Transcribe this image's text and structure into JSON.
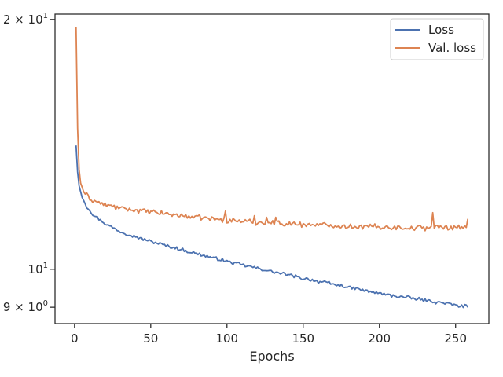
{
  "chart_data": {
    "type": "line",
    "title": "",
    "xlabel": "Epochs",
    "ylabel": "",
    "yscale": "log",
    "xlim": [
      -12.8,
      271.8
    ],
    "ylim": [
      8.6,
      20.3
    ],
    "grid": false,
    "legend_position": "top-right",
    "x_ticks": [
      0,
      50,
      100,
      150,
      200,
      250
    ],
    "y_ticks": [
      {
        "value": 20,
        "mantissa": "2",
        "exponent": "1"
      },
      {
        "value": 10,
        "mantissa": "",
        "exponent": "1"
      },
      {
        "value": 9,
        "mantissa": "9",
        "exponent": "0"
      }
    ],
    "x": [
      1,
      258
    ],
    "series": [
      {
        "name": "Loss",
        "color": "#4c72b0",
        "anchors": [
          [
            1,
            14.1
          ],
          [
            2,
            13.1
          ],
          [
            3,
            12.6
          ],
          [
            5,
            12.2
          ],
          [
            8,
            11.9
          ],
          [
            12,
            11.65
          ],
          [
            20,
            11.35
          ],
          [
            30,
            11.1
          ],
          [
            40,
            10.95
          ],
          [
            50,
            10.8
          ],
          [
            60,
            10.68
          ],
          [
            75,
            10.5
          ],
          [
            100,
            10.22
          ],
          [
            125,
            9.98
          ],
          [
            150,
            9.75
          ],
          [
            175,
            9.55
          ],
          [
            200,
            9.35
          ],
          [
            225,
            9.2
          ],
          [
            240,
            9.12
          ],
          [
            250,
            9.05
          ],
          [
            258,
            9.02
          ]
        ],
        "noise": 0.04
      },
      {
        "name": "Val. loss",
        "color": "#dd8452",
        "anchors": [
          [
            1,
            19.6
          ],
          [
            2,
            14.8
          ],
          [
            3,
            13.2
          ],
          [
            4,
            12.7
          ],
          [
            6,
            12.4
          ],
          [
            10,
            12.15
          ],
          [
            20,
            11.95
          ],
          [
            30,
            11.85
          ],
          [
            50,
            11.72
          ],
          [
            75,
            11.58
          ],
          [
            100,
            11.45
          ],
          [
            125,
            11.38
          ],
          [
            150,
            11.33
          ],
          [
            175,
            11.28
          ],
          [
            200,
            11.25
          ],
          [
            225,
            11.22
          ],
          [
            258,
            11.25
          ]
        ],
        "noise": 0.07,
        "spikes": [
          [
            99,
            11.75
          ],
          [
            118,
            11.6
          ],
          [
            126,
            11.55
          ],
          [
            132,
            11.55
          ],
          [
            235,
            11.7
          ],
          [
            258,
            11.5
          ]
        ]
      }
    ]
  }
}
